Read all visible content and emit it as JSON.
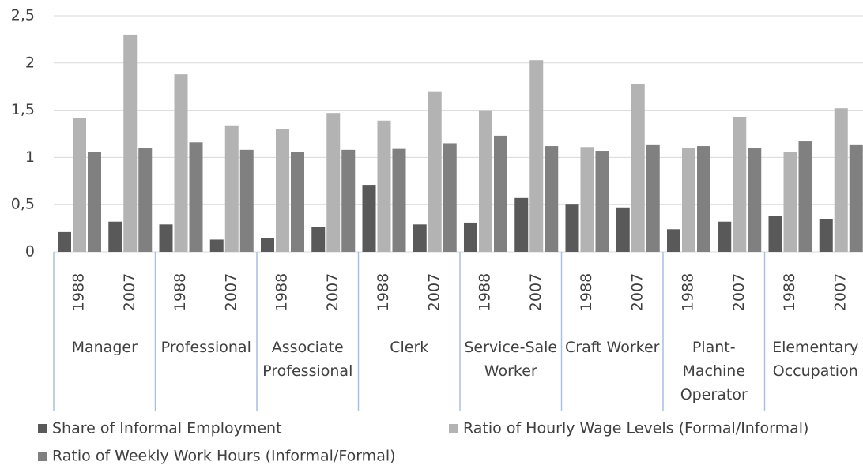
{
  "chart_data": {
    "type": "bar",
    "categories": [
      "1988",
      "2007",
      "1988",
      "2007",
      "1988",
      "2007",
      "1988",
      "2007",
      "1988",
      "2007",
      "1988",
      "2007",
      "1988",
      "2007",
      "1988",
      "2007"
    ],
    "groups": [
      "Manager",
      "Professional",
      "Associate Professional",
      "Clerk",
      "Service-Sale Worker",
      "Craft Worker",
      "Plant-Machine Operator",
      "Elementary Occupation"
    ],
    "series": [
      {
        "name": "Share of Informal Employment",
        "color": "#595959",
        "values": [
          0.21,
          0.32,
          0.29,
          0.13,
          0.15,
          0.26,
          0.71,
          0.29,
          0.31,
          0.57,
          0.5,
          0.47,
          0.24,
          0.32,
          0.38,
          0.35
        ]
      },
      {
        "name": "Ratio of Hourly Wage Levels (Formal/Informal)",
        "color": "#b3b3b3",
        "values": [
          1.42,
          2.3,
          1.88,
          1.34,
          1.3,
          1.47,
          1.39,
          1.7,
          1.5,
          2.03,
          1.11,
          1.78,
          1.1,
          1.43,
          1.06,
          1.52
        ]
      },
      {
        "name": "Ratio of Weekly Work Hours (Informal/Formal)",
        "color": "#808080",
        "values": [
          1.06,
          1.1,
          1.16,
          1.08,
          1.06,
          1.08,
          1.09,
          1.15,
          1.23,
          1.12,
          1.07,
          1.13,
          1.12,
          1.1,
          1.17,
          1.13
        ]
      }
    ],
    "ylim": [
      0,
      2.5
    ],
    "yticks": [
      0,
      {
        "value": 0.5,
        "label": "0,5"
      },
      1,
      {
        "value": 1.5,
        "label": "1,5"
      },
      2,
      {
        "value": 2.5,
        "label": "2,5"
      }
    ],
    "grid": true
  }
}
